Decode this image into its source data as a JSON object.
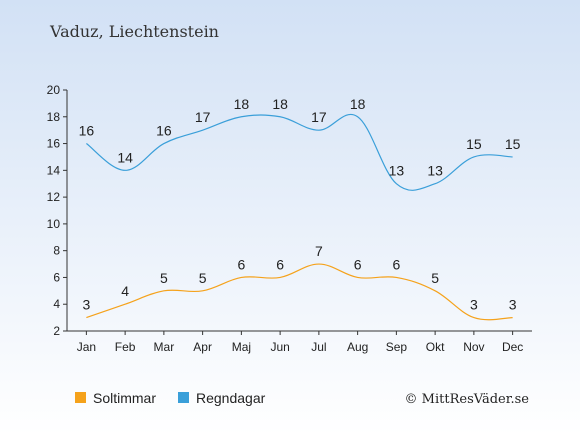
{
  "chart_data": {
    "type": "line",
    "title": "Vaduz, Liechtenstein",
    "categories": [
      "Jan",
      "Feb",
      "Mar",
      "Apr",
      "Maj",
      "Jun",
      "Jul",
      "Aug",
      "Sep",
      "Okt",
      "Nov",
      "Dec"
    ],
    "ylim": [
      2,
      20
    ],
    "yticks": [
      2,
      4,
      6,
      8,
      10,
      12,
      14,
      16,
      18,
      20
    ],
    "grid": false,
    "legend_position": "bottom",
    "series": [
      {
        "name": "Soltimmar",
        "color": "#f5a21b",
        "values": [
          3,
          4,
          5,
          5,
          6,
          6,
          7,
          6,
          6,
          5,
          3,
          3
        ]
      },
      {
        "name": "Regndagar",
        "color": "#3a9fd9",
        "values": [
          16,
          14,
          16,
          17,
          18,
          18,
          17,
          18,
          13,
          13,
          15,
          15
        ]
      }
    ]
  },
  "footer": {
    "copyright": "© MittResVäder.se"
  }
}
